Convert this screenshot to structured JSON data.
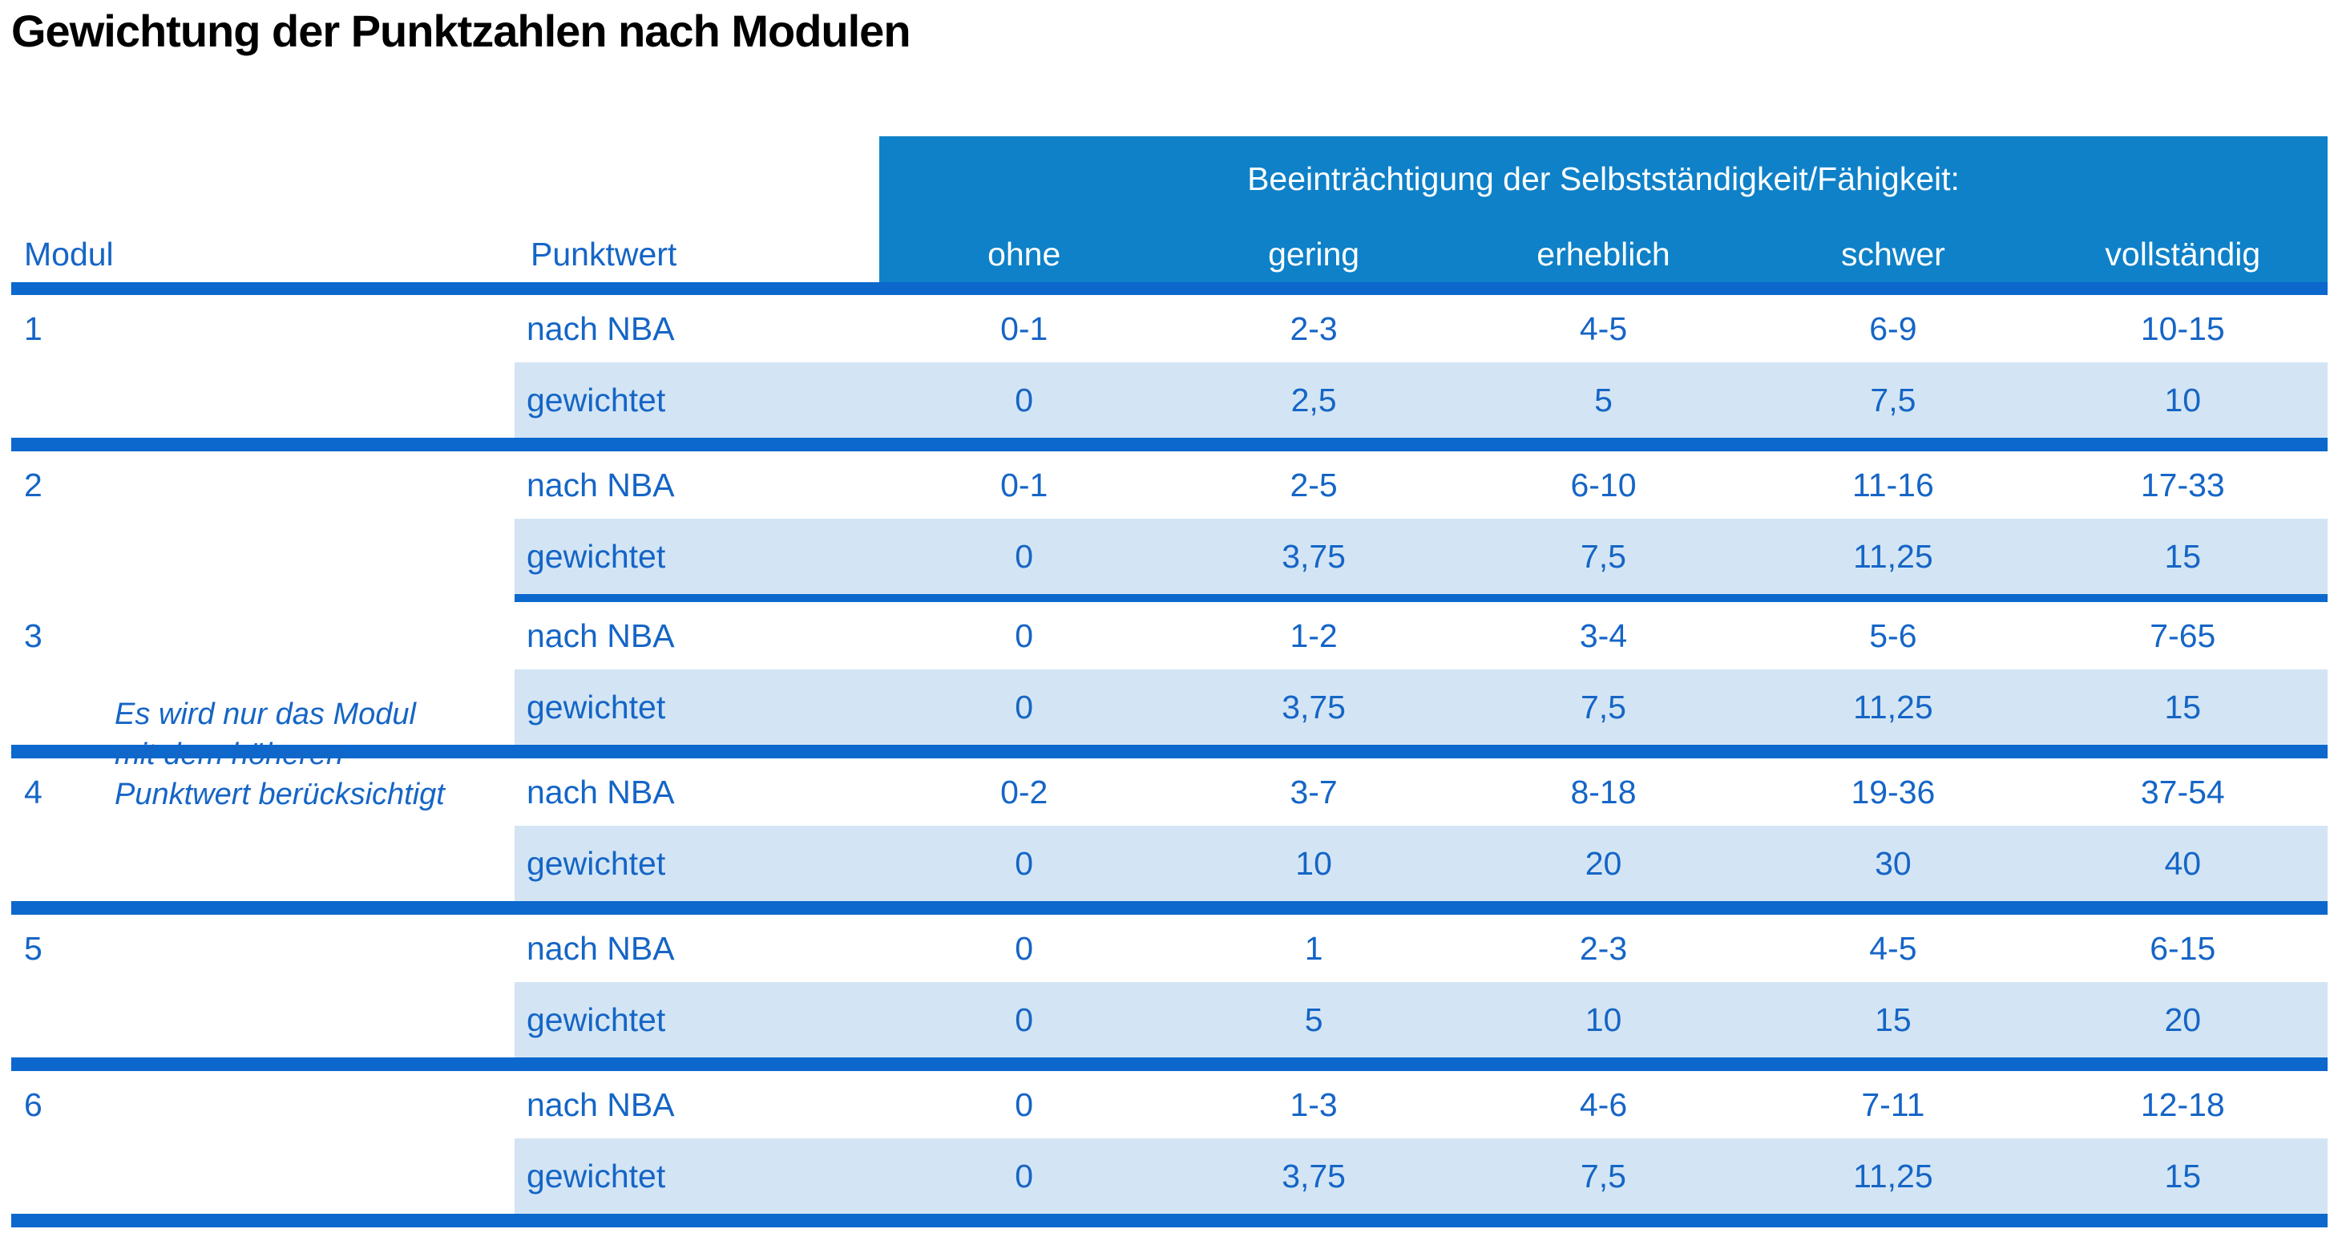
{
  "title": "Gewichtung der Punktzahlen nach Modulen",
  "table": {
    "header": {
      "group_label": "Beeinträchtigung der Selbstständigkeit/Fähigkeit:",
      "col_modul": "Modul",
      "col_punktwert": "Punktwert",
      "severity_levels": [
        "ohne",
        "gering",
        "erheblich",
        "schwer",
        "vollständig"
      ]
    },
    "row_labels": {
      "nba": "nach NBA",
      "weighted": "gewichtet"
    },
    "note": {
      "lines": [
        "Es wird nur das Modul",
        "mit dem höheren",
        "Punktwert berücksichtigt"
      ]
    },
    "modules": [
      {
        "id": "1",
        "nba": [
          "0-1",
          "2-3",
          "4-5",
          "6-9",
          "10-15"
        ],
        "weighted": [
          "0",
          "2,5",
          "5",
          "7,5",
          "10"
        ]
      },
      {
        "id": "2",
        "nba": [
          "0-1",
          "2-5",
          "6-10",
          "11-16",
          "17-33"
        ],
        "weighted": [
          "0",
          "3,75",
          "7,5",
          "11,25",
          "15"
        ]
      },
      {
        "id": "3",
        "nba": [
          "0",
          "1-2",
          "3-4",
          "5-6",
          "7-65"
        ],
        "weighted": [
          "0",
          "3,75",
          "7,5",
          "11,25",
          "15"
        ]
      },
      {
        "id": "4",
        "nba": [
          "0-2",
          "3-7",
          "8-18",
          "19-36",
          "37-54"
        ],
        "weighted": [
          "0",
          "10",
          "20",
          "30",
          "40"
        ]
      },
      {
        "id": "5",
        "nba": [
          "0",
          "1",
          "2-3",
          "4-5",
          "6-15"
        ],
        "weighted": [
          "0",
          "5",
          "10",
          "15",
          "20"
        ]
      },
      {
        "id": "6",
        "nba": [
          "0",
          "1-3",
          "4-6",
          "7-11",
          "12-18"
        ],
        "weighted": [
          "0",
          "3,75",
          "7,5",
          "11,25",
          "15"
        ]
      }
    ]
  },
  "colors": {
    "header_band_blue": "#0e81c8",
    "row_highlight_blue": "#d3e5f4",
    "text_blue": "#1565c6",
    "line_blue": "#0c68cc",
    "title_color": "#000000"
  }
}
